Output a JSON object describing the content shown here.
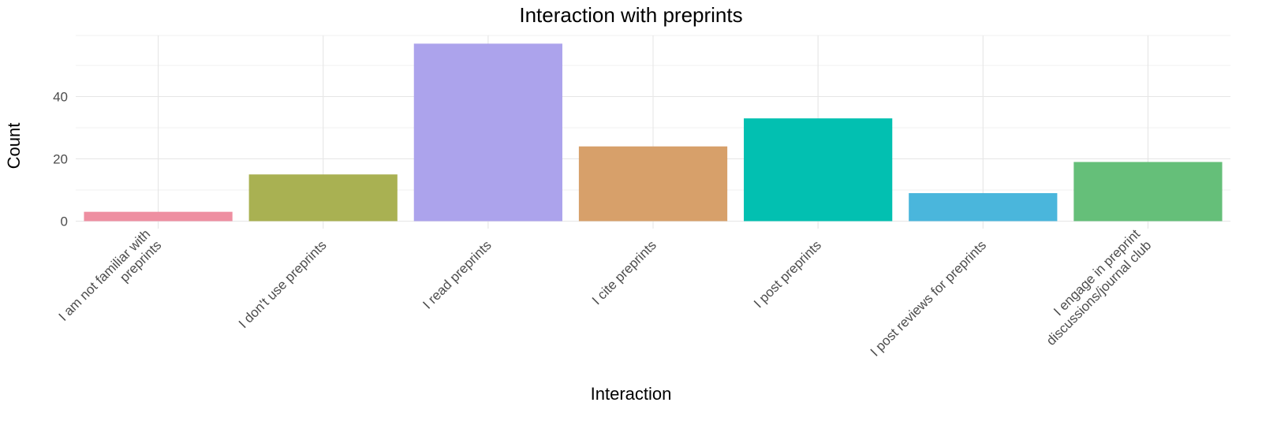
{
  "chart_data": {
    "type": "bar",
    "title": "Interaction with preprints",
    "xlabel": "Interaction",
    "ylabel": "Count",
    "categories": [
      [
        "I am not familiar with",
        "preprints"
      ],
      [
        "I don't use preprints"
      ],
      [
        "I read preprints"
      ],
      [
        "I cite preprints"
      ],
      [
        "I post preprints"
      ],
      [
        "I post reviews for preprints"
      ],
      [
        "I engage in preprint",
        "discussions/journal club"
      ]
    ],
    "values": [
      3,
      15,
      57,
      24,
      33,
      9,
      19
    ],
    "colors": [
      "#EE8FA1",
      "#A9B152",
      "#ACA3EC",
      "#D7A06A",
      "#02C0B1",
      "#4AB6DC",
      "#65BF79"
    ],
    "ylim": [
      0,
      60
    ],
    "yticks": [
      0,
      20,
      40
    ],
    "grid": true,
    "legend": "none"
  }
}
